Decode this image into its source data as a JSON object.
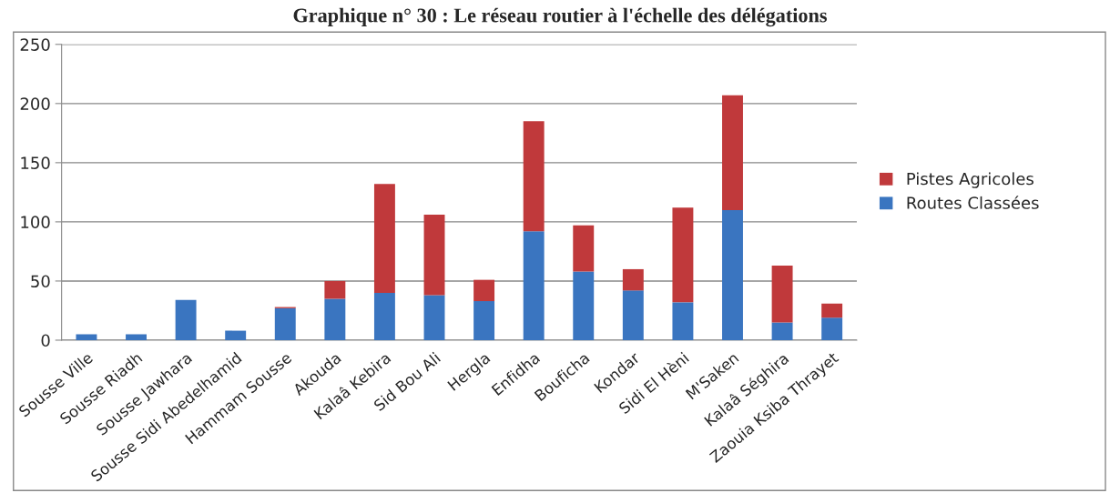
{
  "chart_data": {
    "type": "bar",
    "title": "Graphique n° 30 : Le réseau routier à l'échelle des délégations",
    "categories": [
      "Sousse Ville",
      "Sousse Riadh",
      "Sousse Jawhara",
      "Sousse Sidi Abedelhamid",
      "Hammam Sousse",
      "Akouda",
      "Kalaâ Kebira",
      "Sid Bou Ali",
      "Hergla",
      "Enfidha",
      "Bouficha",
      "Kondar",
      "Sidi El Hèni",
      "M'Saken",
      "Kalaâ Séghira",
      "Zaouia Ksiba Thrayet"
    ],
    "series": [
      {
        "name": "Routes Classées",
        "color": "#3a75c0",
        "values": [
          5,
          5,
          34,
          8,
          27,
          35,
          40,
          38,
          33,
          92,
          58,
          42,
          32,
          110,
          15,
          19
        ]
      },
      {
        "name": "Pistes Agricoles",
        "color": "#c0393b",
        "values": [
          0,
          0,
          0,
          0,
          1,
          15,
          92,
          68,
          18,
          93,
          39,
          18,
          80,
          97,
          48,
          12
        ]
      }
    ],
    "stacked": true,
    "ylim": [
      0,
      250
    ],
    "yticks": [
      0,
      50,
      100,
      150,
      200,
      250
    ],
    "grid": "y",
    "legend": "right"
  }
}
